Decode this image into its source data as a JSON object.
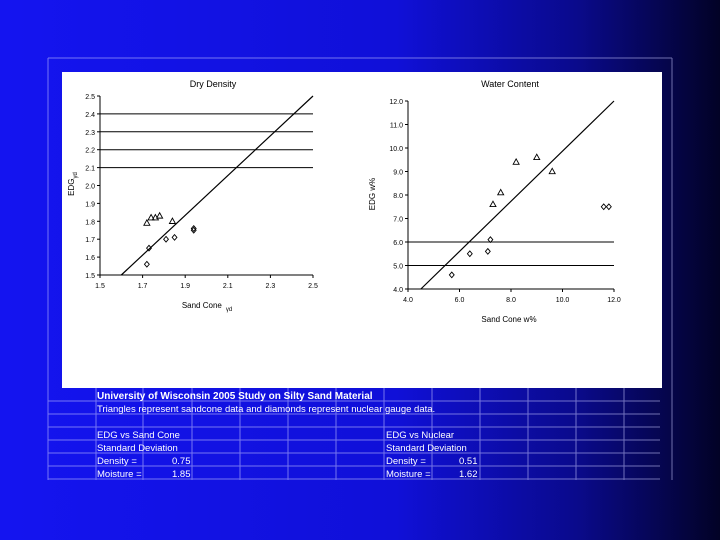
{
  "chart_data": [
    {
      "type": "scatter",
      "title": "Dry Density",
      "xlabel": "Sand Cone",
      "xlabel_sub": "γd",
      "ylabel": "EDG",
      "ylabel_sub": "γd",
      "xlim": [
        1.5,
        2.5
      ],
      "ylim": [
        1.5,
        2.5
      ],
      "xticks": [
        "1.5",
        "1.7",
        "1.9",
        "2.1",
        "2.3",
        "2.5"
      ],
      "yticks": [
        "1.5",
        "1.6",
        "1.7",
        "1.8",
        "1.9",
        "2.0",
        "2.1",
        "2.2",
        "2.3",
        "2.4",
        "2.5"
      ],
      "hlines": [
        1.5,
        2.1,
        2.2,
        2.3,
        2.4
      ],
      "reference_line": [
        [
          1.6,
          1.5
        ],
        [
          2.5,
          2.5
        ]
      ],
      "series": [
        {
          "marker": "triangle",
          "points": [
            [
              1.72,
              1.79
            ],
            [
              1.74,
              1.82
            ],
            [
              1.76,
              1.82
            ],
            [
              1.78,
              1.83
            ],
            [
              1.84,
              1.8
            ]
          ]
        },
        {
          "marker": "diamond",
          "points": [
            [
              1.72,
              1.56
            ],
            [
              1.73,
              1.65
            ],
            [
              1.81,
              1.7
            ],
            [
              1.85,
              1.71
            ],
            [
              1.94,
              1.75
            ],
            [
              1.94,
              1.76
            ]
          ]
        }
      ]
    },
    {
      "type": "scatter",
      "title": "Water Content",
      "xlabel": "Sand Cone w%",
      "ylabel": "EDG w%",
      "xlim": [
        4.0,
        12.0
      ],
      "ylim": [
        4.0,
        12.0
      ],
      "xticks": [
        "4.0",
        "6.0",
        "8.0",
        "10.0",
        "12.0"
      ],
      "yticks": [
        "4.0",
        "5.0",
        "6.0",
        "7.0",
        "8.0",
        "9.0",
        "10.0",
        "11.0",
        "12.0"
      ],
      "hlines": [
        5.0,
        6.0
      ],
      "reference_line": [
        [
          4.5,
          4.0
        ],
        [
          12.0,
          12.0
        ]
      ],
      "series": [
        {
          "marker": "triangle",
          "points": [
            [
              7.3,
              7.6
            ],
            [
              7.6,
              8.1
            ],
            [
              8.2,
              9.4
            ],
            [
              9.0,
              9.6
            ],
            [
              9.6,
              9.0
            ]
          ]
        },
        {
          "marker": "diamond",
          "points": [
            [
              5.7,
              4.6
            ],
            [
              6.4,
              5.5
            ],
            [
              7.1,
              5.6
            ],
            [
              7.2,
              6.1
            ],
            [
              11.6,
              7.5
            ],
            [
              11.8,
              7.5
            ]
          ]
        }
      ]
    }
  ],
  "caption": {
    "title": "University of Wisconsin 2005 Study on Silty Sand Material",
    "subtitle": "Triangles represent sandcone data and diamonds represent nuclear gauge data.",
    "left_table": {
      "heading": "EDG vs Sand Cone",
      "subheading": "Standard Deviation",
      "rows": [
        {
          "label": "Density =",
          "value": "0.75"
        },
        {
          "label": "Moisture =",
          "value": "1.85"
        }
      ]
    },
    "right_table": {
      "heading": "EDG vs Nuclear",
      "subheading": "Standard Deviation",
      "rows": [
        {
          "label": "Density =",
          "value": "0.51"
        },
        {
          "label": "Moisture =",
          "value": "1.62"
        }
      ]
    }
  },
  "colors": {
    "gridline": "#c8c8ff",
    "plot_ink": "#000000",
    "panel": "#ffffff"
  }
}
